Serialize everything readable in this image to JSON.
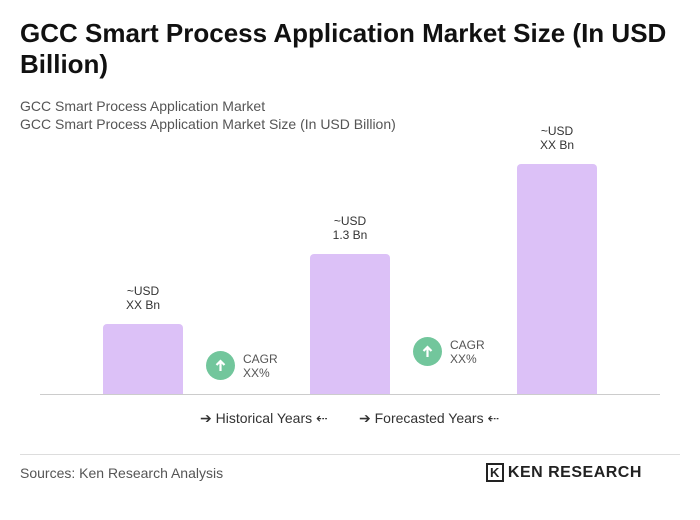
{
  "chart_data": {
    "type": "bar",
    "title": "GCC Smart Process Application Market Size (In USD Billion)",
    "subtitle": [
      "GCC Smart Process Application Market",
      "GCC Smart Process Application Market Size (In USD Billion)"
    ],
    "categories": [
      null,
      null,
      null
    ],
    "values": [
      0.65,
      1.3,
      2.14
    ],
    "value_labels": [
      "~USD\nXX Bn",
      "~USD\n1.3 Bn",
      "~USD\nXX Bn"
    ],
    "color": "#dcc1f7",
    "annotations": [
      "CAGR\nXX%",
      "CAGR\nXX%"
    ],
    "legend": [
      "Historical Years",
      "Forecasted Years"
    ],
    "source": "Sources: Ken Research Analysis",
    "brand": "KEN RESEARCH"
  }
}
